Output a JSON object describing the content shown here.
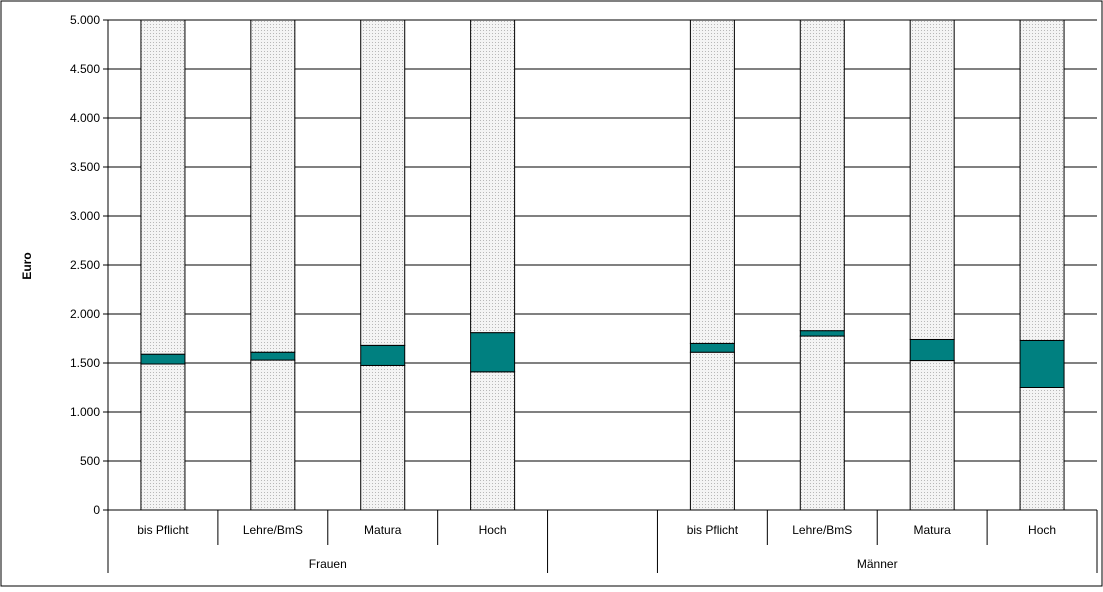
{
  "chart_data": {
    "type": "bar",
    "stacked": true,
    "ylabel": "Euro",
    "ylim": [
      0,
      5000
    ],
    "y_ticks": [
      0,
      500,
      1000,
      1500,
      2000,
      2500,
      3000,
      3500,
      4000,
      4500,
      5000
    ],
    "y_tick_labels": [
      "0",
      "500",
      "1.000",
      "1.500",
      "2.000",
      "2.500",
      "3.000",
      "3.500",
      "4.000",
      "4.500",
      "5.000"
    ],
    "grid": true,
    "categories": [
      "bis Pflicht",
      "Lehre/BmS",
      "Matura",
      "Hoch",
      "",
      "bis Pflicht",
      "Lehre/BmS",
      "Matura",
      "Hoch"
    ],
    "groups": [
      {
        "label": "Frauen",
        "categories": [
          "bis Pflicht",
          "Lehre/BmS",
          "Matura",
          "Hoch"
        ]
      },
      {
        "label": "",
        "categories": [
          ""
        ]
      },
      {
        "label": "Männer",
        "categories": [
          "bis Pflicht",
          "Lehre/BmS",
          "Matura",
          "Hoch"
        ]
      }
    ],
    "series": [
      {
        "values": [
          1490,
          1530,
          1475,
          1410,
          null,
          1610,
          1775,
          1525,
          1250
        ],
        "color": "#ececec"
      },
      {
        "values": [
          100,
          80,
          205,
          400,
          null,
          90,
          55,
          215,
          480
        ],
        "color": "#008080"
      },
      {
        "values": [
          3410,
          3390,
          3320,
          3190,
          null,
          3300,
          3170,
          3260,
          3270
        ],
        "color": "#ececec"
      }
    ]
  }
}
